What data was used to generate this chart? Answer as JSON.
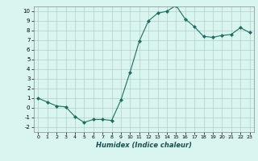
{
  "x": [
    0,
    1,
    2,
    3,
    4,
    5,
    6,
    7,
    8,
    9,
    10,
    11,
    12,
    13,
    14,
    15,
    16,
    17,
    18,
    19,
    20,
    21,
    22,
    23
  ],
  "y": [
    1.0,
    0.6,
    0.2,
    0.1,
    -0.9,
    -1.5,
    -1.2,
    -1.2,
    -1.3,
    0.8,
    3.7,
    6.9,
    9.0,
    9.8,
    10.0,
    10.6,
    9.2,
    8.4,
    7.4,
    7.3,
    7.5,
    7.6,
    8.3,
    7.8
  ],
  "line_color": "#1a7060",
  "marker": "D",
  "marker_size": 2,
  "bg_color": "#d8f5f0",
  "grid_color": "#b5ceca",
  "xlabel": "Humidex (Indice chaleur)",
  "xlim": [
    -0.5,
    23.5
  ],
  "ylim": [
    -2.5,
    10.5
  ],
  "yticks": [
    -2,
    -1,
    0,
    1,
    2,
    3,
    4,
    5,
    6,
    7,
    8,
    9,
    10
  ],
  "xticks": [
    0,
    1,
    2,
    3,
    4,
    5,
    6,
    7,
    8,
    9,
    10,
    11,
    12,
    13,
    14,
    15,
    16,
    17,
    18,
    19,
    20,
    21,
    22,
    23
  ]
}
